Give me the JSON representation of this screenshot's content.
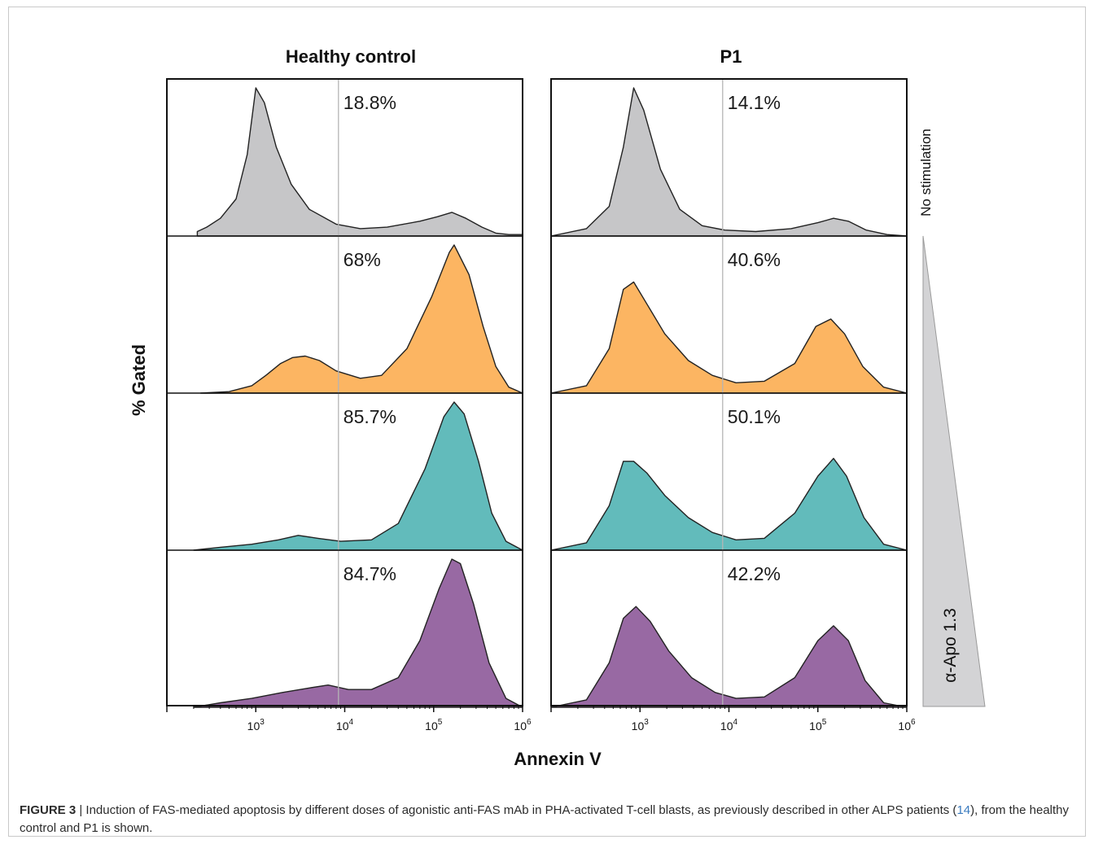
{
  "figure": {
    "columns": [
      "Healthy control",
      "P1"
    ],
    "y_label": "% Gated",
    "x_label": "Annexin V",
    "x_ticks": [
      {
        "base": "10",
        "exp": "3"
      },
      {
        "base": "10",
        "exp": "4"
      },
      {
        "base": "10",
        "exp": "5"
      },
      {
        "base": "10",
        "exp": "6"
      }
    ],
    "right_labels": {
      "top": "No stimulation",
      "dose": "α-Apo 1.3"
    },
    "colors": {
      "no_stimulation": "#c6c6c8",
      "dose_1": "#fcb562",
      "dose_2": "#62bbbb",
      "dose_3": "#9869a3",
      "outline": "#222222",
      "gate_line": "#b5b5b5"
    }
  },
  "chart_data": {
    "type": "area",
    "x_scale": "log10",
    "x_range": [
      100,
      1000000
    ],
    "gate_x": 8500,
    "panels": [
      {
        "column": "Healthy control",
        "rows": [
          {
            "percent": "18.8%",
            "color": "#c6c6c8",
            "series": [
              [
                0.03,
                220
              ],
              [
                0.06,
                280
              ],
              [
                0.12,
                400
              ],
              [
                0.25,
                600
              ],
              [
                0.55,
                800
              ],
              [
                1.0,
                1000
              ],
              [
                0.9,
                1250
              ],
              [
                0.6,
                1700
              ],
              [
                0.35,
                2500
              ],
              [
                0.18,
                4000
              ],
              [
                0.08,
                8000
              ],
              [
                0.05,
                15000
              ],
              [
                0.06,
                30000
              ],
              [
                0.1,
                70000
              ],
              [
                0.13,
                110000
              ],
              [
                0.16,
                160000
              ],
              [
                0.12,
                230000
              ],
              [
                0.06,
                350000
              ],
              [
                0.02,
                500000
              ],
              [
                0.01,
                700000
              ],
              [
                0.01,
                1000000
              ]
            ]
          },
          {
            "percent": "68%",
            "color": "#fcb562",
            "series": [
              [
                0.0,
                240
              ],
              [
                0.01,
                500
              ],
              [
                0.05,
                900
              ],
              [
                0.12,
                1300
              ],
              [
                0.2,
                1900
              ],
              [
                0.24,
                2600
              ],
              [
                0.25,
                3600
              ],
              [
                0.22,
                5200
              ],
              [
                0.15,
                8000
              ],
              [
                0.1,
                15000
              ],
              [
                0.12,
                26000
              ],
              [
                0.3,
                50000
              ],
              [
                0.65,
                95000
              ],
              [
                0.95,
                150000
              ],
              [
                1.0,
                170000
              ],
              [
                0.8,
                250000
              ],
              [
                0.45,
                360000
              ],
              [
                0.18,
                500000
              ],
              [
                0.04,
                700000
              ],
              [
                0.0,
                1000000
              ]
            ]
          },
          {
            "percent": "85.7%",
            "color": "#62bbbb",
            "series": [
              [
                0.0,
                200
              ],
              [
                0.02,
                400
              ],
              [
                0.04,
                900
              ],
              [
                0.07,
                1800
              ],
              [
                0.1,
                3000
              ],
              [
                0.08,
                5000
              ],
              [
                0.06,
                9000
              ],
              [
                0.07,
                20000
              ],
              [
                0.18,
                40000
              ],
              [
                0.55,
                80000
              ],
              [
                0.9,
                130000
              ],
              [
                1.0,
                170000
              ],
              [
                0.92,
                220000
              ],
              [
                0.6,
                320000
              ],
              [
                0.25,
                450000
              ],
              [
                0.06,
                650000
              ],
              [
                0.0,
                1000000
              ]
            ]
          },
          {
            "percent": "84.7%",
            "color": "#9869a3",
            "series": [
              [
                0.0,
                200
              ],
              [
                0.03,
                400
              ],
              [
                0.06,
                900
              ],
              [
                0.1,
                2000
              ],
              [
                0.13,
                4000
              ],
              [
                0.15,
                6500
              ],
              [
                0.12,
                11000
              ],
              [
                0.12,
                20000
              ],
              [
                0.2,
                40000
              ],
              [
                0.45,
                70000
              ],
              [
                0.8,
                115000
              ],
              [
                1.0,
                160000
              ],
              [
                0.97,
                200000
              ],
              [
                0.7,
                280000
              ],
              [
                0.3,
                420000
              ],
              [
                0.06,
                650000
              ],
              [
                0.0,
                1000000
              ]
            ]
          }
        ]
      },
      {
        "column": "P1",
        "rows": [
          {
            "percent": "14.1%",
            "color": "#c6c6c8",
            "series": [
              [
                0.0,
                100
              ],
              [
                0.05,
                250
              ],
              [
                0.2,
                450
              ],
              [
                0.6,
                650
              ],
              [
                1.0,
                850
              ],
              [
                0.85,
                1100
              ],
              [
                0.45,
                1700
              ],
              [
                0.18,
                2800
              ],
              [
                0.07,
                5000
              ],
              [
                0.04,
                9000
              ],
              [
                0.03,
                20000
              ],
              [
                0.05,
                50000
              ],
              [
                0.09,
                100000
              ],
              [
                0.12,
                150000
              ],
              [
                0.1,
                220000
              ],
              [
                0.04,
                350000
              ],
              [
                0.01,
                600000
              ],
              [
                0.0,
                1000000
              ]
            ]
          },
          {
            "percent": "40.6%",
            "color": "#fcb562",
            "series": [
              [
                0.0,
                100
              ],
              [
                0.05,
                250
              ],
              [
                0.3,
                450
              ],
              [
                0.7,
                650
              ],
              [
                0.75,
                850
              ],
              [
                0.6,
                1200
              ],
              [
                0.4,
                1900
              ],
              [
                0.22,
                3500
              ],
              [
                0.12,
                6500
              ],
              [
                0.07,
                12000
              ],
              [
                0.08,
                25000
              ],
              [
                0.2,
                55000
              ],
              [
                0.45,
                95000
              ],
              [
                0.5,
                140000
              ],
              [
                0.4,
                200000
              ],
              [
                0.18,
                320000
              ],
              [
                0.04,
                550000
              ],
              [
                0.0,
                1000000
              ]
            ]
          },
          {
            "percent": "50.1%",
            "color": "#62bbbb",
            "series": [
              [
                0.0,
                100
              ],
              [
                0.05,
                250
              ],
              [
                0.3,
                450
              ],
              [
                0.6,
                650
              ],
              [
                0.6,
                850
              ],
              [
                0.52,
                1200
              ],
              [
                0.37,
                1900
              ],
              [
                0.22,
                3500
              ],
              [
                0.12,
                6500
              ],
              [
                0.07,
                12000
              ],
              [
                0.08,
                25000
              ],
              [
                0.25,
                55000
              ],
              [
                0.5,
                100000
              ],
              [
                0.62,
                150000
              ],
              [
                0.5,
                210000
              ],
              [
                0.22,
                330000
              ],
              [
                0.04,
                550000
              ],
              [
                0.0,
                1000000
              ]
            ]
          },
          {
            "percent": "42.2%",
            "color": "#9869a3",
            "series": [
              [
                0.0,
                100
              ],
              [
                0.05,
                250
              ],
              [
                0.3,
                450
              ],
              [
                0.6,
                650
              ],
              [
                0.68,
                900
              ],
              [
                0.58,
                1300
              ],
              [
                0.38,
                2100
              ],
              [
                0.2,
                3800
              ],
              [
                0.1,
                7000
              ],
              [
                0.06,
                12000
              ],
              [
                0.07,
                25000
              ],
              [
                0.2,
                55000
              ],
              [
                0.45,
                100000
              ],
              [
                0.55,
                150000
              ],
              [
                0.45,
                220000
              ],
              [
                0.18,
                340000
              ],
              [
                0.03,
                550000
              ],
              [
                0.0,
                1000000
              ]
            ]
          }
        ]
      }
    ]
  },
  "caption": {
    "label": "FIGURE 3",
    "separator": " | ",
    "text_before_ref": "Induction of FAS-mediated apoptosis by different doses of agonistic anti-FAS mAb in PHA-activated T-cell blasts, as previously described in other ALPS patients (",
    "ref": "14",
    "text_after_ref": "), from the healthy control and P1 is shown."
  }
}
